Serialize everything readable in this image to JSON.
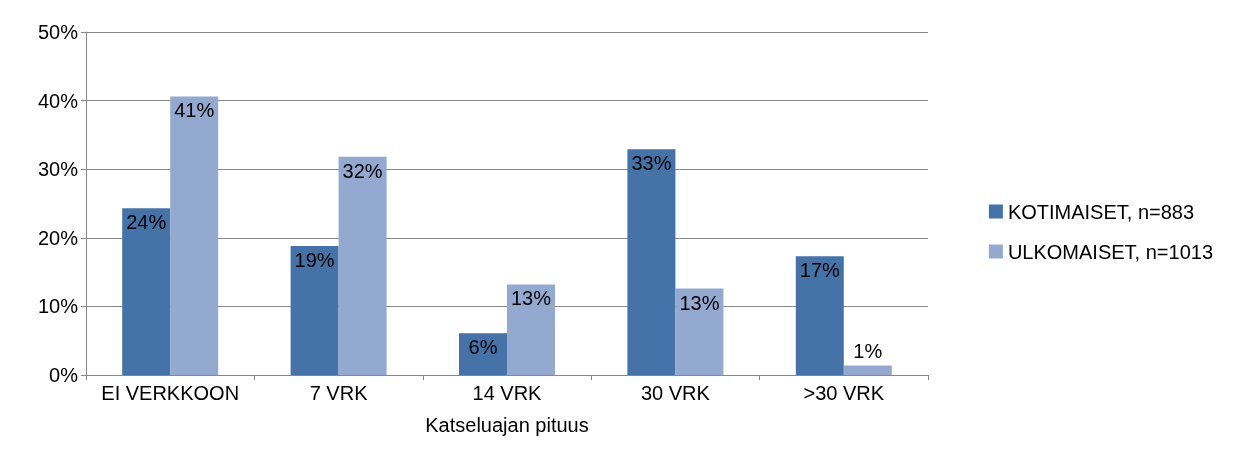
{
  "chart_data": {
    "type": "bar",
    "xlabel": "Katseluajan pituus",
    "categories": [
      "EI VERKKOON",
      "7 VRK",
      "14 VRK",
      "30 VRK",
      ">30 VRK"
    ],
    "series": [
      {
        "name": "KOTIMAISET, n=883",
        "color": "#4572a7",
        "values": [
          24.3,
          18.8,
          6.1,
          32.9,
          17.3
        ],
        "value_labels": [
          "24%",
          "19%",
          "6%",
          "33%",
          "17%"
        ]
      },
      {
        "name": "ULKOMAISET, n=1013",
        "color": "#93a9cf",
        "values": [
          40.6,
          31.8,
          13.2,
          12.6,
          1.4
        ],
        "value_labels": [
          "41%",
          "32%",
          "13%",
          "13%",
          "1%"
        ]
      }
    ],
    "ylim": [
      0,
      50
    ],
    "yticks": [
      {
        "value": 0,
        "label": "0%"
      },
      {
        "value": 10,
        "label": "10%"
      },
      {
        "value": 20,
        "label": "20%"
      },
      {
        "value": 30,
        "label": "30%"
      },
      {
        "value": 40,
        "label": "40%"
      },
      {
        "value": 50,
        "label": "50%"
      }
    ],
    "grid": "y",
    "legend": "right"
  }
}
